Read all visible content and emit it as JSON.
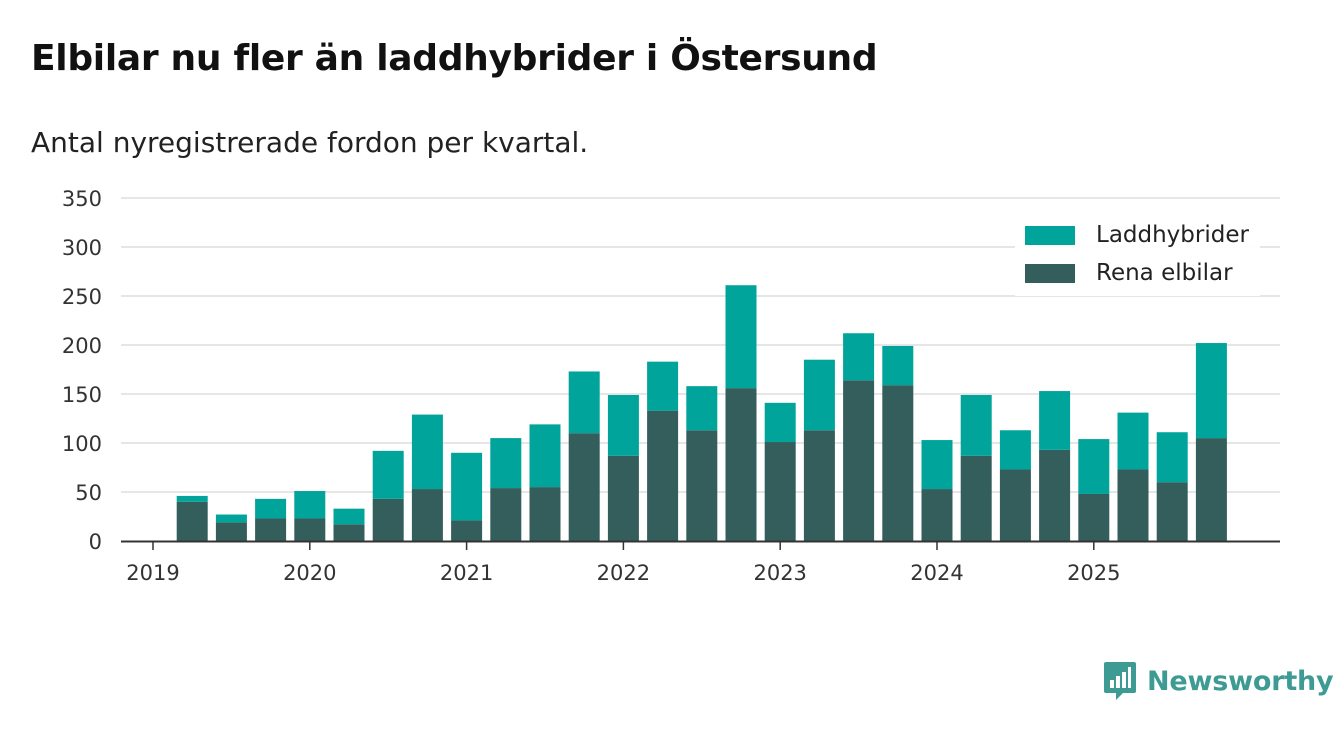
{
  "title": "Elbilar nu fler än laddhybrider i Östersund",
  "subtitle": "Antal nyregistrerade fordon per kvartal.",
  "brand": "Newsworthy",
  "colors": {
    "laddhybrider": "#00a49a",
    "rena_elbilar": "#335e5b",
    "grid": "#dddddd",
    "axis": "#333333",
    "brand": "#3d9b94"
  },
  "legend": [
    {
      "label": "Laddhybrider",
      "color": "#00a49a"
    },
    {
      "label": "Rena elbilar",
      "color": "#335e5b"
    }
  ],
  "chart_data": {
    "type": "bar",
    "stacked": true,
    "title": "Elbilar nu fler än laddhybrider i Östersund",
    "subtitle": "Antal nyregistrerade fordon per kvartal.",
    "xlabel": "",
    "ylabel": "",
    "ylim": [
      0,
      350
    ],
    "y_ticks": [
      0,
      50,
      100,
      150,
      200,
      250,
      300,
      350
    ],
    "x_ticks": [
      "2019",
      "2020",
      "2021",
      "2022",
      "2023",
      "2024",
      "2025"
    ],
    "grid": true,
    "legend_position": "top-right",
    "categories": [
      "2019 Q1",
      "2019 Q2",
      "2019 Q3",
      "2019 Q4",
      "2020 Q1",
      "2020 Q2",
      "2020 Q3",
      "2020 Q4",
      "2021 Q1",
      "2021 Q2",
      "2021 Q3",
      "2021 Q4",
      "2022 Q1",
      "2022 Q2",
      "2022 Q3",
      "2022 Q4",
      "2023 Q1",
      "2023 Q2",
      "2023 Q3",
      "2023 Q4",
      "2024 Q1",
      "2024 Q2",
      "2024 Q3",
      "2024 Q4",
      "2025 Q1",
      "2025 Q2",
      "2025 Q3",
      "2025 Q4"
    ],
    "series": [
      {
        "name": "Rena elbilar",
        "values": [
          0,
          40,
          19,
          23,
          23,
          17,
          43,
          53,
          21,
          54,
          55,
          110,
          87,
          133,
          113,
          156,
          101,
          113,
          164,
          159,
          53,
          87,
          73,
          93,
          48,
          73,
          60,
          105
        ]
      },
      {
        "name": "Laddhybrider",
        "values": [
          0,
          6,
          8,
          20,
          28,
          16,
          49,
          76,
          69,
          51,
          64,
          63,
          62,
          50,
          45,
          105,
          40,
          72,
          48,
          40,
          50,
          62,
          40,
          60,
          56,
          58,
          51,
          97
        ]
      }
    ]
  }
}
